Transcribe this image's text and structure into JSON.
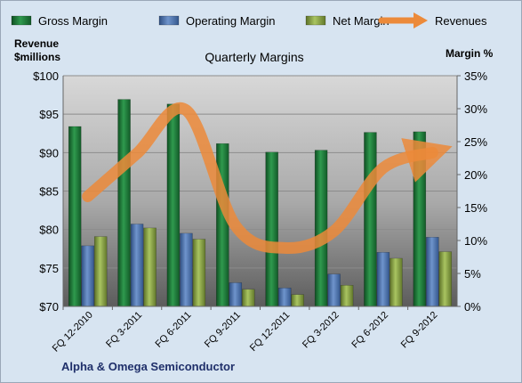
{
  "chart_data": {
    "type": "bar",
    "title": "Quarterly Margins",
    "categories": [
      "FQ 12-2010",
      "FQ 3-2011",
      "FQ 6-2011",
      "FQ 9-2011",
      "FQ 12-2011",
      "FQ 3-2012",
      "FQ 6-2012",
      "FQ 9-2012"
    ],
    "left_axis_label_line1": "Revenue",
    "left_axis_label_line2": "$millions",
    "right_axis_label": "Margin %",
    "left_axis": {
      "min": 70,
      "max": 100,
      "step": 5,
      "format": "$"
    },
    "right_axis": {
      "min": 0,
      "max": 35,
      "step": 5,
      "format": "%"
    },
    "grid": true,
    "legend_position": "top",
    "footer": "Alpha & Omega Semiconductor",
    "series": [
      {
        "name": "Gross Margin",
        "axis": "right",
        "type": "bar",
        "color": "#1e7a3a",
        "values": [
          27.3,
          31.4,
          30.7,
          24.7,
          23.4,
          23.7,
          26.4,
          26.5
        ]
      },
      {
        "name": "Operating Margin",
        "axis": "right",
        "type": "bar",
        "color": "#4f77b3",
        "values": [
          9.2,
          12.5,
          11.1,
          3.6,
          2.8,
          4.9,
          8.2,
          10.5
        ]
      },
      {
        "name": "Net Margin",
        "axis": "right",
        "type": "bar",
        "color": "#8ea84a",
        "values": [
          10.6,
          11.9,
          10.2,
          2.6,
          1.8,
          3.2,
          7.3,
          8.3
        ]
      },
      {
        "name": "Revenues",
        "axis": "left",
        "type": "line",
        "color": "#ec8a3a",
        "values": [
          84.3,
          89.9,
          95.5,
          80.5,
          77.6,
          79.8,
          88.0,
          90.0
        ]
      }
    ]
  }
}
